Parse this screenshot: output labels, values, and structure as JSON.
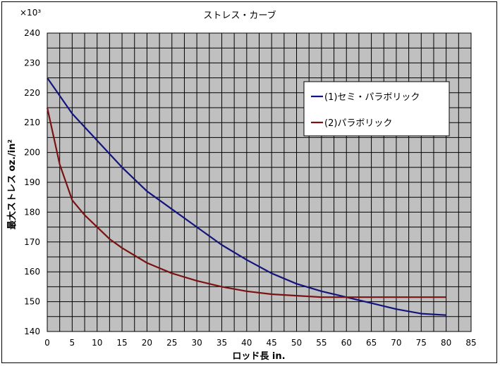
{
  "chart_data": {
    "type": "line",
    "title": "ストレス・カーブ",
    "multiplier_label": "×10³",
    "xlabel": "ロッド長 in.",
    "ylabel": "最大ストレス oz./in²",
    "xlim": [
      0,
      85
    ],
    "ylim": [
      140,
      240
    ],
    "grid": true,
    "x_ticks": [
      0,
      5,
      10,
      15,
      20,
      25,
      30,
      35,
      40,
      45,
      50,
      55,
      60,
      65,
      70,
      75,
      80,
      85
    ],
    "y_ticks": [
      140,
      150,
      160,
      170,
      180,
      190,
      200,
      210,
      220,
      230,
      240
    ],
    "x_minor_step": 2.5,
    "y_minor_step": 5,
    "legend": {
      "position": "top-right"
    },
    "series": [
      {
        "name": "(1)セミ・パラボリック",
        "color": "#14147e",
        "x": [
          0,
          5,
          10,
          15,
          20,
          25,
          30,
          35,
          40,
          45,
          50,
          55,
          60,
          65,
          70,
          75,
          80
        ],
        "values": [
          225,
          213,
          204,
          195,
          187,
          181,
          175,
          169,
          164,
          159.5,
          156,
          153.5,
          151.5,
          149.5,
          147.5,
          146,
          145.5
        ]
      },
      {
        "name": "(2)パラボリック",
        "color": "#7a1212",
        "x": [
          0,
          2.5,
          5,
          7.5,
          10,
          12.5,
          15,
          20,
          25,
          30,
          35,
          40,
          45,
          50,
          55,
          60,
          65,
          70,
          75,
          80
        ],
        "values": [
          215,
          196,
          184,
          179,
          175,
          171,
          168,
          163,
          159.5,
          157,
          155,
          153.5,
          152.5,
          152,
          151.5,
          151.5,
          151.5,
          151.5,
          151.5,
          151.5
        ]
      }
    ]
  }
}
